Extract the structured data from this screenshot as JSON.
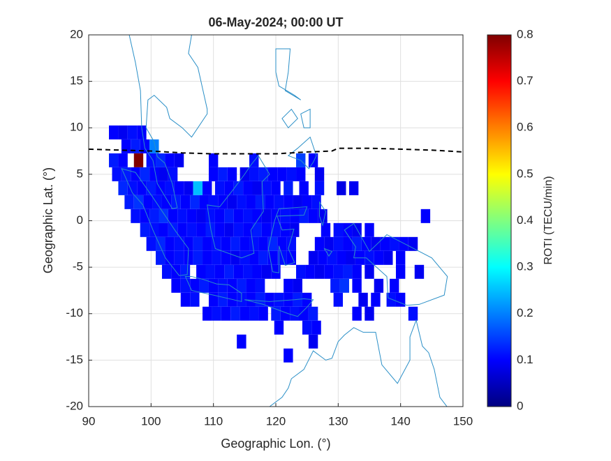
{
  "chart_data": {
    "type": "heatmap",
    "title": "06-May-2024; 00:00 UT",
    "x_label": "Geographic Lon. (°)",
    "y_label": "Geographic Lat. (°)",
    "colorbar_label": "ROTI (TECU/min)",
    "xlim": [
      90,
      150
    ],
    "xticks": [
      90,
      100,
      110,
      120,
      130,
      140,
      150
    ],
    "ylim": [
      -20,
      20
    ],
    "yticks": [
      -20,
      -15,
      -10,
      -5,
      0,
      5,
      10,
      15,
      20
    ],
    "clim": [
      0,
      0.8
    ],
    "cticks": [
      0,
      0.1,
      0.2,
      0.3,
      0.4,
      0.5,
      0.6,
      0.7,
      0.8
    ],
    "colormap": "jet",
    "grid": true,
    "equator": {
      "lon": [
        90,
        95,
        100,
        105,
        110,
        115,
        120,
        125,
        129,
        130,
        135,
        140,
        145,
        150
      ],
      "lat": [
        7.7,
        7.6,
        7.5,
        7.3,
        7.2,
        7.2,
        7.2,
        7.4,
        7.5,
        7.8,
        7.8,
        7.7,
        7.6,
        7.4
      ]
    },
    "rows": [
      {
        "lat": 9.5,
        "lons": [
          94,
          95.5,
          97,
          98.5
        ],
        "values": [
          0.1,
          0.09,
          0.11,
          0.1
        ]
      },
      {
        "lat": 8,
        "lons": [
          96,
          97.5,
          99,
          100.5
        ],
        "values": [
          0.1,
          0.12,
          0.1,
          0.2
        ]
      },
      {
        "lat": 6.5,
        "lons": [
          94,
          95.5,
          98,
          100,
          101.5,
          103,
          104.5,
          110,
          116.5,
          124,
          126
        ],
        "values": [
          0.12,
          0.1,
          0.8,
          0.11,
          0.13,
          0.1,
          0.09,
          0.1,
          0.11,
          0.15,
          0.1
        ]
      },
      {
        "lat": 5,
        "lons": [
          94.5,
          96,
          97.5,
          99,
          100.5,
          102,
          103.5,
          110,
          111.5,
          113,
          115,
          116.5,
          118,
          119.5,
          121,
          122.5,
          124,
          127
        ],
        "values": [
          0.11,
          0.12,
          0.1,
          0.13,
          0.1,
          0.09,
          0.11,
          0.1,
          0.12,
          0.1,
          0.09,
          0.11,
          0.12,
          0.1,
          0.1,
          0.11,
          0.1,
          0.09
        ]
      },
      {
        "lat": 3.5,
        "lons": [
          95.5,
          97,
          98.5,
          100,
          101.5,
          103,
          104.5,
          106,
          107.5,
          109,
          111,
          112.5,
          114,
          115.5,
          117,
          118.5,
          120,
          122,
          124.5,
          127,
          130.5,
          132.5
        ],
        "values": [
          0.13,
          0.11,
          0.1,
          0.12,
          0.1,
          0.11,
          0.1,
          0.09,
          0.25,
          0.1,
          0.11,
          0.1,
          0.12,
          0.1,
          0.09,
          0.11,
          0.1,
          0.12,
          0.1,
          0.11,
          0.08,
          0.09
        ]
      },
      {
        "lat": 2,
        "lons": [
          96.5,
          98,
          99.5,
          101,
          102.5,
          104,
          105.5,
          107,
          108.5,
          110,
          111.5,
          113,
          114.5,
          116,
          117.5,
          119,
          120.5,
          122,
          123.5,
          125,
          126.5
        ],
        "values": [
          0.12,
          0.14,
          0.1,
          0.11,
          0.1,
          0.12,
          0.1,
          0.13,
          0.1,
          0.11,
          0.1,
          0.09,
          0.11,
          0.1,
          0.12,
          0.1,
          0.11,
          0.1,
          0.09,
          0.1,
          0.11
        ]
      },
      {
        "lat": 0.5,
        "lons": [
          97.5,
          99,
          100.5,
          102,
          103.5,
          105,
          106.5,
          108,
          109.5,
          111,
          112.5,
          114,
          115.5,
          117,
          118.5,
          120,
          121.5,
          123,
          124.5,
          126,
          127.5,
          144
        ],
        "values": [
          0.11,
          0.1,
          0.12,
          0.14,
          0.1,
          0.11,
          0.1,
          0.09,
          0.11,
          0.1,
          0.12,
          0.1,
          0.11,
          0.1,
          0.09,
          0.1,
          0.11,
          0.1,
          0.12,
          0.1,
          0.09,
          0.1
        ]
      },
      {
        "lat": -1,
        "lons": [
          99,
          100.5,
          102,
          103.5,
          105,
          106.5,
          108,
          109.5,
          111,
          112.5,
          114,
          115.5,
          117,
          118.5,
          120,
          121.5,
          123,
          128,
          130,
          131.5,
          133,
          135
        ],
        "values": [
          0.12,
          0.11,
          0.1,
          0.12,
          0.1,
          0.11,
          0.1,
          0.12,
          0.1,
          0.09,
          0.11,
          0.1,
          0.12,
          0.1,
          0.11,
          0.1,
          0.09,
          0.1,
          0.11,
          0.1,
          0.09,
          0.1
        ]
      },
      {
        "lat": -2.5,
        "lons": [
          100,
          101.5,
          103,
          104.5,
          106,
          107.5,
          109,
          110.5,
          112,
          113.5,
          115,
          116.5,
          118,
          119.5,
          121,
          122.5,
          127,
          128.5,
          130,
          131.5,
          133,
          134.5,
          136,
          137.5,
          139,
          140.5,
          142
        ],
        "values": [
          0.11,
          0.13,
          0.1,
          0.11,
          0.1,
          0.12,
          0.1,
          0.11,
          0.1,
          0.12,
          0.1,
          0.11,
          0.1,
          0.13,
          0.1,
          0.11,
          0.1,
          0.09,
          0.11,
          0.1,
          0.12,
          0.1,
          0.09,
          0.1,
          0.11,
          0.1,
          0.09
        ]
      },
      {
        "lat": -4,
        "lons": [
          101.5,
          103,
          104.5,
          106,
          107.5,
          109,
          110.5,
          112,
          113.5,
          115,
          116.5,
          118,
          119.5,
          121,
          122.5,
          126,
          127.5,
          129,
          130.5,
          132,
          133.5,
          135,
          136.5,
          138,
          140
        ],
        "values": [
          0.12,
          0.1,
          0.11,
          0.1,
          0.12,
          0.1,
          0.11,
          0.1,
          0.09,
          0.11,
          0.1,
          0.12,
          0.1,
          0.11,
          0.1,
          0.09,
          0.1,
          0.11,
          0.1,
          0.09,
          0.1,
          0.11,
          0.1,
          0.09,
          0.1
        ]
      },
      {
        "lat": -5.5,
        "lons": [
          102.5,
          104,
          105.5,
          108,
          109.5,
          111,
          112.5,
          114,
          115.5,
          117,
          118.5,
          120,
          124,
          125.5,
          127,
          128.5,
          130,
          131.5,
          133,
          135,
          140,
          143
        ],
        "values": [
          0.11,
          0.1,
          0.12,
          0.1,
          0.11,
          0.1,
          0.12,
          0.1,
          0.11,
          0.1,
          0.09,
          0.1,
          0.11,
          0.1,
          0.09,
          0.1,
          0.11,
          0.12,
          0.1,
          0.09,
          0.1,
          0.09
        ]
      },
      {
        "lat": -7,
        "lons": [
          104,
          105.5,
          107,
          108.5,
          110,
          111.5,
          113,
          114.5,
          116,
          117.5,
          122,
          123.5,
          129.5,
          131,
          133,
          136.5,
          139
        ],
        "values": [
          0.1,
          0.11,
          0.1,
          0.12,
          0.1,
          0.11,
          0.1,
          0.12,
          0.1,
          0.11,
          0.1,
          0.09,
          0.12,
          0.14,
          0.1,
          0.09,
          0.1
        ]
      },
      {
        "lat": -8.5,
        "lons": [
          105.5,
          107,
          110,
          111.5,
          113,
          114.5,
          116,
          117.5,
          119,
          120.5,
          122,
          123.5,
          125,
          130,
          134,
          136,
          138.5,
          140
        ],
        "values": [
          0.1,
          0.11,
          0.1,
          0.12,
          0.1,
          0.11,
          0.1,
          0.12,
          0.1,
          0.11,
          0.1,
          0.12,
          0.1,
          0.11,
          0.09,
          0.1,
          0.11,
          0.1
        ]
      },
      {
        "lat": -10,
        "lons": [
          109,
          110.5,
          112,
          113.5,
          115,
          116.5,
          118,
          120,
          121.5,
          123,
          124.5,
          126,
          133,
          135,
          142
        ],
        "values": [
          0.1,
          0.11,
          0.1,
          0.12,
          0.1,
          0.11,
          0.1,
          0.12,
          0.1,
          0.11,
          0.1,
          0.12,
          0.1,
          0.09,
          0.11
        ]
      },
      {
        "lat": -11.5,
        "lons": [
          120.5,
          125,
          126.5
        ],
        "values": [
          0.1,
          0.11,
          0.1
        ]
      },
      {
        "lat": -13,
        "lons": [
          114.5,
          126
        ],
        "values": [
          0.1,
          0.09
        ]
      },
      {
        "lat": -14.5,
        "lons": [
          122
        ],
        "values": [
          0.1
        ]
      }
    ]
  }
}
